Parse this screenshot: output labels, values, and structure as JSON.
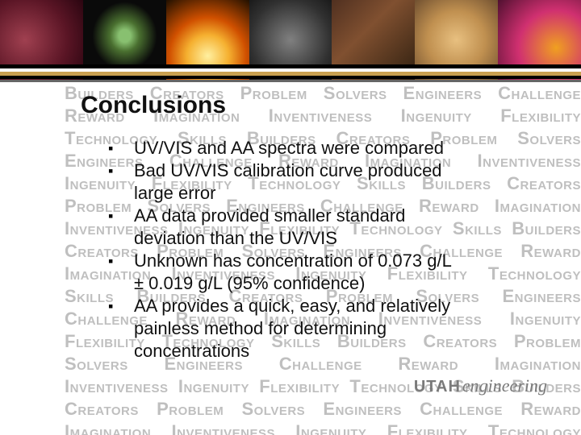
{
  "banner": {
    "images": [
      "pattern",
      "brain",
      "fire",
      "gear",
      "industrial",
      "coin",
      "cell"
    ]
  },
  "background_words": "Builders Creators Problem Solvers Engineers Challenge Reward Imagination Inventiveness Ingenuity Flexibility Technology Skills Builders Creators Problem Solvers Engineers Challenge Reward Imagination Inventiveness Ingenuity Flexibility Technology Skills Builders Creators Problem Solvers Engineers Challenge Reward Imagination Inventiveness Ingenuity Flexibility Technology Skills Builders Creators Problem Solvers Engineers Challenge Reward Imagination Inventiveness Ingenuity Flexibility Technology Skills Builders Creators Problem Solvers Engineers Challenge Reward Imagination Inventiveness Ingenuity Flexibility Technology Skills Builders Creators Problem Solvers Engineers Challenge Reward Imagination Inventiveness Ingenuity Flexibility Technology Skills Builders Creators Problem Solvers Engineers Challenge Reward Imagination Inventiveness Ingenuity Flexibility Technology Skills Builders Creators Problem Solvers Engineers Challenge Reward Imagination Inventiveness Ingenuity Flexibility Technology",
  "title": "Conclusions",
  "bullets": [
    {
      "line1": "UV/VIS and AA spectra were compared"
    },
    {
      "line1": "Bad UV/VIS calibration curve produced",
      "line2": "large error"
    },
    {
      "line1": "AA data provided smaller standard",
      "line2": "deviation than the UV/VIS"
    },
    {
      "line1": "Unknown has concentration of 0.073 g/L",
      "line2": "± 0.019 g/L (95% confidence)"
    },
    {
      "line1": "AA provides a quick, easy, and relatively",
      "line2": "painless method for determining",
      "line3": "concentrations"
    }
  ],
  "logo": {
    "mark": "UTAH",
    "text": "engineering"
  },
  "colors": {
    "bg_text": "#bfbfbf",
    "fg_text": "#111111",
    "logo": "#7a7a7a"
  },
  "typography": {
    "title_fontsize": 30,
    "bullet_fontsize": 22,
    "bg_fontsize": 22,
    "bullet_lineheight": 28
  }
}
